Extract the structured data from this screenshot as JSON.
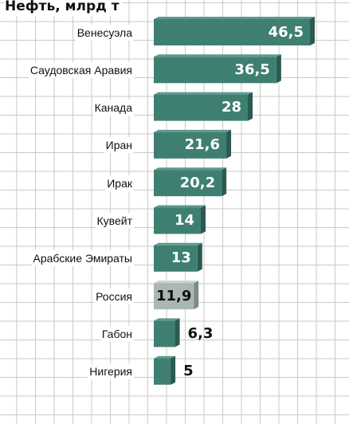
{
  "chart_data": {
    "type": "bar",
    "orientation": "horizontal",
    "title": "Нефть, млрд т",
    "categories": [
      "Венесуэла",
      "Саудовская Аравия",
      "Канада",
      "Иран",
      "Ирак",
      "Кувейт",
      "Арабские Эмираты",
      "Россия",
      "Габон",
      "Нигерия"
    ],
    "values": [
      46.5,
      36.5,
      28,
      21.6,
      20.2,
      14,
      13,
      11.9,
      6.3,
      5
    ],
    "value_labels": [
      "46,5",
      "36,5",
      "28",
      "21,6",
      "20,2",
      "14",
      "13",
      "11,9",
      "6,3",
      "5"
    ],
    "highlight": "Россия",
    "xlim": [
      0,
      46.5
    ],
    "grid": true,
    "colors": {
      "bar": "#3f7f72",
      "bar_side": "#2a5a51",
      "bar_top": "#5c9a8c",
      "highlight_bar": "#a9b8b1",
      "highlight_side": "#7d8c86",
      "highlight_top": "#c7d3cd",
      "grid": "#c9c9c9",
      "label_inside": "#ffffff",
      "label_outside": "#111111"
    }
  }
}
